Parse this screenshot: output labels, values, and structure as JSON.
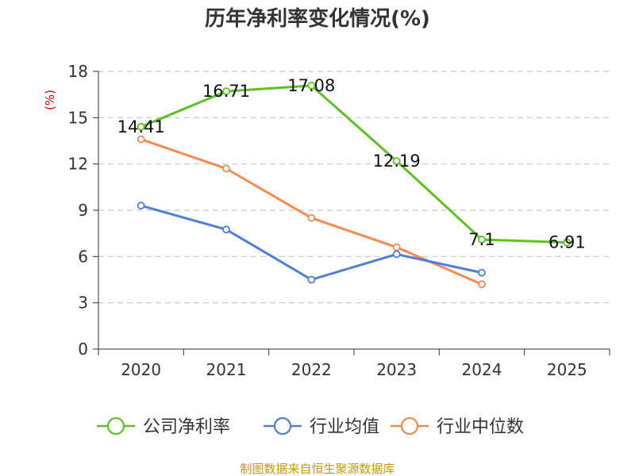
{
  "chart_data": {
    "type": "line",
    "title": "历年净利率变化情况(%)",
    "ylabel": "(%)",
    "xlabel": "",
    "categories": [
      "2020",
      "2021",
      "2022",
      "2023",
      "2024",
      "2025"
    ],
    "ylim": [
      0,
      18
    ],
    "yticks": [
      0,
      3,
      6,
      9,
      12,
      15,
      18
    ],
    "grid": true,
    "legend_position": "bottom-center",
    "series": [
      {
        "name": "公司净利率",
        "color": "#5cc223",
        "values": [
          14.41,
          16.71,
          17.08,
          12.19,
          7.1,
          6.91
        ],
        "labels": [
          "14.41",
          "16.71",
          "17.08",
          "12.19",
          "7.1",
          "6.91"
        ]
      },
      {
        "name": "行业均值",
        "color": "#4e7fd9",
        "values": [
          9.3,
          7.75,
          4.5,
          6.15,
          4.95,
          null
        ]
      },
      {
        "name": "行业中位数",
        "color": "#f78b4f",
        "values": [
          13.6,
          11.7,
          8.5,
          6.6,
          4.2,
          null
        ]
      }
    ],
    "source": "制图数据来自恒生聚源数据库"
  }
}
